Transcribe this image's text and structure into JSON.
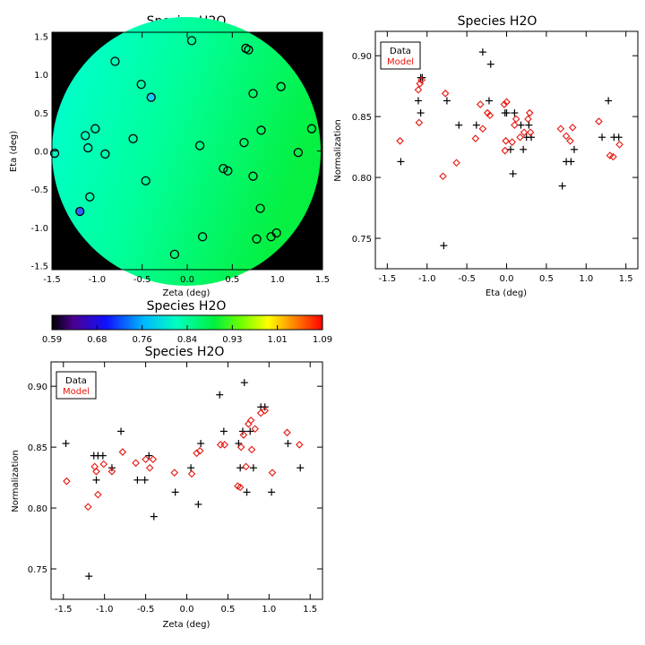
{
  "colors": {
    "data_marker": "#000000",
    "model_marker": "#e8140c",
    "map_background": "#000000"
  },
  "colorbar": {
    "title": "Species H2O",
    "tick_labels": [
      "0.59",
      "0.68",
      "0.76",
      "0.84",
      "0.93",
      "1.01",
      "1.09"
    ],
    "range": [
      0.59,
      1.09
    ],
    "colormap": "rainbow (purple-blue-cyan-green-yellow-red)"
  },
  "chart_data": [
    {
      "type": "scatter",
      "name": "map",
      "title": "Species H2O",
      "xlabel": "Zeta (deg)",
      "ylabel": "Eta (deg)",
      "xlim": [
        -1.5,
        1.5
      ],
      "ylim": [
        -1.55,
        1.55
      ],
      "xticks": [
        "-1.5",
        "-1.0",
        "-0.5",
        "0.0",
        "0.5",
        "1.0",
        "1.5"
      ],
      "yticks": [
        "-1.5",
        "-1.0",
        "-0.5",
        "0.0",
        "0.5",
        "1.0",
        "1.5"
      ],
      "field_disk_radius_deg": 1.5,
      "points": [
        {
          "x": -1.47,
          "y": -0.03
        },
        {
          "x": -1.19,
          "y": -0.79
        },
        {
          "x": -1.13,
          "y": 0.2
        },
        {
          "x": -1.1,
          "y": 0.04
        },
        {
          "x": -1.08,
          "y": -0.6
        },
        {
          "x": -1.02,
          "y": 0.29
        },
        {
          "x": -0.91,
          "y": -0.04
        },
        {
          "x": -0.8,
          "y": 1.17
        },
        {
          "x": -0.6,
          "y": 0.16
        },
        {
          "x": -0.51,
          "y": 0.87
        },
        {
          "x": -0.46,
          "y": -0.39
        },
        {
          "x": -0.4,
          "y": 0.7
        },
        {
          "x": -0.14,
          "y": -1.35
        },
        {
          "x": 0.05,
          "y": 1.44
        },
        {
          "x": 0.14,
          "y": 0.07
        },
        {
          "x": 0.17,
          "y": -1.12
        },
        {
          "x": 0.4,
          "y": -0.23
        },
        {
          "x": 0.45,
          "y": -0.26
        },
        {
          "x": 0.63,
          "y": 0.11
        },
        {
          "x": 0.65,
          "y": 1.34
        },
        {
          "x": 0.68,
          "y": 1.32
        },
        {
          "x": 0.73,
          "y": -0.33
        },
        {
          "x": 0.73,
          "y": 0.75
        },
        {
          "x": 0.77,
          "y": -1.15
        },
        {
          "x": 0.81,
          "y": -0.75
        },
        {
          "x": 0.82,
          "y": 0.27
        },
        {
          "x": 0.93,
          "y": -1.12
        },
        {
          "x": 0.99,
          "y": -1.07
        },
        {
          "x": 1.04,
          "y": 0.84
        },
        {
          "x": 1.23,
          "y": -0.02
        },
        {
          "x": 1.38,
          "y": 0.29
        }
      ]
    },
    {
      "type": "scatter",
      "name": "eta",
      "title": "Species H2O",
      "xlabel": "Eta (deg)",
      "ylabel": "Normalization",
      "xlim": [
        -1.65,
        1.65
      ],
      "ylim": [
        0.725,
        0.92
      ],
      "xticks": [
        "-1.5",
        "-1.0",
        "-0.5",
        "0.0",
        "0.5",
        "1.0",
        "1.5"
      ],
      "yticks": [
        "0.75",
        "0.80",
        "0.85",
        "0.90"
      ],
      "legend": [
        "Data",
        "Model"
      ],
      "legend_position": "top-left",
      "data_points": [
        {
          "x": -1.33,
          "y": 0.813
        },
        {
          "x": -1.11,
          "y": 0.863
        },
        {
          "x": -1.08,
          "y": 0.882
        },
        {
          "x": -1.06,
          "y": 0.882
        },
        {
          "x": -1.08,
          "y": 0.853
        },
        {
          "x": -0.79,
          "y": 0.744
        },
        {
          "x": -0.75,
          "y": 0.863
        },
        {
          "x": -0.6,
          "y": 0.843
        },
        {
          "x": -0.38,
          "y": 0.843
        },
        {
          "x": -0.3,
          "y": 0.903
        },
        {
          "x": -0.22,
          "y": 0.863
        },
        {
          "x": -0.2,
          "y": 0.893
        },
        {
          "x": -0.02,
          "y": 0.853
        },
        {
          "x": 0.0,
          "y": 0.853
        },
        {
          "x": 0.05,
          "y": 0.823
        },
        {
          "x": 0.08,
          "y": 0.803
        },
        {
          "x": 0.1,
          "y": 0.853
        },
        {
          "x": 0.18,
          "y": 0.843
        },
        {
          "x": 0.21,
          "y": 0.823
        },
        {
          "x": 0.25,
          "y": 0.833
        },
        {
          "x": 0.28,
          "y": 0.843
        },
        {
          "x": 0.31,
          "y": 0.833
        },
        {
          "x": 0.7,
          "y": 0.793
        },
        {
          "x": 0.75,
          "y": 0.813
        },
        {
          "x": 0.81,
          "y": 0.813
        },
        {
          "x": 0.85,
          "y": 0.823
        },
        {
          "x": 1.2,
          "y": 0.833
        },
        {
          "x": 1.28,
          "y": 0.863
        },
        {
          "x": 1.35,
          "y": 0.833
        },
        {
          "x": 1.41,
          "y": 0.833
        }
      ],
      "model_points": [
        {
          "x": -1.34,
          "y": 0.83
        },
        {
          "x": -1.1,
          "y": 0.845
        },
        {
          "x": -1.11,
          "y": 0.872
        },
        {
          "x": -1.09,
          "y": 0.877
        },
        {
          "x": -1.07,
          "y": 0.88
        },
        {
          "x": -0.8,
          "y": 0.801
        },
        {
          "x": -0.77,
          "y": 0.869
        },
        {
          "x": -0.63,
          "y": 0.812
        },
        {
          "x": -0.39,
          "y": 0.832
        },
        {
          "x": -0.33,
          "y": 0.86
        },
        {
          "x": -0.3,
          "y": 0.84
        },
        {
          "x": -0.24,
          "y": 0.853
        },
        {
          "x": -0.21,
          "y": 0.851
        },
        {
          "x": -0.03,
          "y": 0.86
        },
        {
          "x": 0.0,
          "y": 0.862
        },
        {
          "x": -0.01,
          "y": 0.83
        },
        {
          "x": -0.02,
          "y": 0.822
        },
        {
          "x": 0.07,
          "y": 0.829
        },
        {
          "x": 0.1,
          "y": 0.843
        },
        {
          "x": 0.12,
          "y": 0.848
        },
        {
          "x": 0.17,
          "y": 0.833
        },
        {
          "x": 0.22,
          "y": 0.837
        },
        {
          "x": 0.27,
          "y": 0.848
        },
        {
          "x": 0.29,
          "y": 0.853
        },
        {
          "x": 0.3,
          "y": 0.837
        },
        {
          "x": 0.68,
          "y": 0.84
        },
        {
          "x": 0.75,
          "y": 0.834
        },
        {
          "x": 0.8,
          "y": 0.83
        },
        {
          "x": 0.83,
          "y": 0.841
        },
        {
          "x": 1.16,
          "y": 0.846
        },
        {
          "x": 1.3,
          "y": 0.818
        },
        {
          "x": 1.34,
          "y": 0.817
        },
        {
          "x": 1.42,
          "y": 0.827
        }
      ]
    },
    {
      "type": "scatter",
      "name": "zeta",
      "title": "Species H2O",
      "xlabel": "Zeta (deg)",
      "ylabel": "Normalization",
      "xlim": [
        -1.65,
        1.65
      ],
      "ylim": [
        0.725,
        0.92
      ],
      "xticks": [
        "-1.5",
        "-1.0",
        "-0.5",
        "0.0",
        "0.5",
        "1.0",
        "1.5"
      ],
      "yticks": [
        "0.75",
        "0.80",
        "0.85",
        "0.90"
      ],
      "legend": [
        "Data",
        "Model"
      ],
      "legend_position": "top-left",
      "data_points": [
        {
          "x": -1.47,
          "y": 0.853
        },
        {
          "x": -1.19,
          "y": 0.744
        },
        {
          "x": -1.13,
          "y": 0.843
        },
        {
          "x": -1.1,
          "y": 0.823
        },
        {
          "x": -1.08,
          "y": 0.843
        },
        {
          "x": -1.02,
          "y": 0.843
        },
        {
          "x": -0.91,
          "y": 0.833
        },
        {
          "x": -0.8,
          "y": 0.863
        },
        {
          "x": -0.6,
          "y": 0.823
        },
        {
          "x": -0.51,
          "y": 0.823
        },
        {
          "x": -0.46,
          "y": 0.843
        },
        {
          "x": -0.4,
          "y": 0.793
        },
        {
          "x": -0.14,
          "y": 0.813
        },
        {
          "x": 0.05,
          "y": 0.833
        },
        {
          "x": 0.14,
          "y": 0.803
        },
        {
          "x": 0.17,
          "y": 0.853
        },
        {
          "x": 0.4,
          "y": 0.893
        },
        {
          "x": 0.45,
          "y": 0.863
        },
        {
          "x": 0.63,
          "y": 0.853
        },
        {
          "x": 0.65,
          "y": 0.833
        },
        {
          "x": 0.68,
          "y": 0.863
        },
        {
          "x": 0.7,
          "y": 0.903
        },
        {
          "x": 0.73,
          "y": 0.813
        },
        {
          "x": 0.77,
          "y": 0.863
        },
        {
          "x": 0.81,
          "y": 0.833
        },
        {
          "x": 0.9,
          "y": 0.883
        },
        {
          "x": 0.95,
          "y": 0.883
        },
        {
          "x": 1.03,
          "y": 0.813
        },
        {
          "x": 1.23,
          "y": 0.853
        },
        {
          "x": 1.38,
          "y": 0.833
        }
      ],
      "model_points": [
        {
          "x": -1.46,
          "y": 0.822
        },
        {
          "x": -1.2,
          "y": 0.801
        },
        {
          "x": -1.12,
          "y": 0.834
        },
        {
          "x": -1.1,
          "y": 0.83
        },
        {
          "x": -1.08,
          "y": 0.811
        },
        {
          "x": -1.01,
          "y": 0.836
        },
        {
          "x": -0.91,
          "y": 0.83
        },
        {
          "x": -0.78,
          "y": 0.846
        },
        {
          "x": -0.62,
          "y": 0.837
        },
        {
          "x": -0.5,
          "y": 0.84
        },
        {
          "x": -0.45,
          "y": 0.833
        },
        {
          "x": -0.41,
          "y": 0.84
        },
        {
          "x": -0.15,
          "y": 0.829
        },
        {
          "x": 0.06,
          "y": 0.828
        },
        {
          "x": 0.12,
          "y": 0.845
        },
        {
          "x": 0.16,
          "y": 0.847
        },
        {
          "x": 0.41,
          "y": 0.852
        },
        {
          "x": 0.46,
          "y": 0.852
        },
        {
          "x": 0.62,
          "y": 0.818
        },
        {
          "x": 0.65,
          "y": 0.817
        },
        {
          "x": 0.66,
          "y": 0.85
        },
        {
          "x": 0.69,
          "y": 0.86
        },
        {
          "x": 0.72,
          "y": 0.834
        },
        {
          "x": 0.75,
          "y": 0.869
        },
        {
          "x": 0.78,
          "y": 0.872
        },
        {
          "x": 0.79,
          "y": 0.848
        },
        {
          "x": 0.83,
          "y": 0.865
        },
        {
          "x": 0.9,
          "y": 0.878
        },
        {
          "x": 0.95,
          "y": 0.88
        },
        {
          "x": 1.04,
          "y": 0.829
        },
        {
          "x": 1.22,
          "y": 0.862
        },
        {
          "x": 1.37,
          "y": 0.852
        }
      ]
    }
  ]
}
